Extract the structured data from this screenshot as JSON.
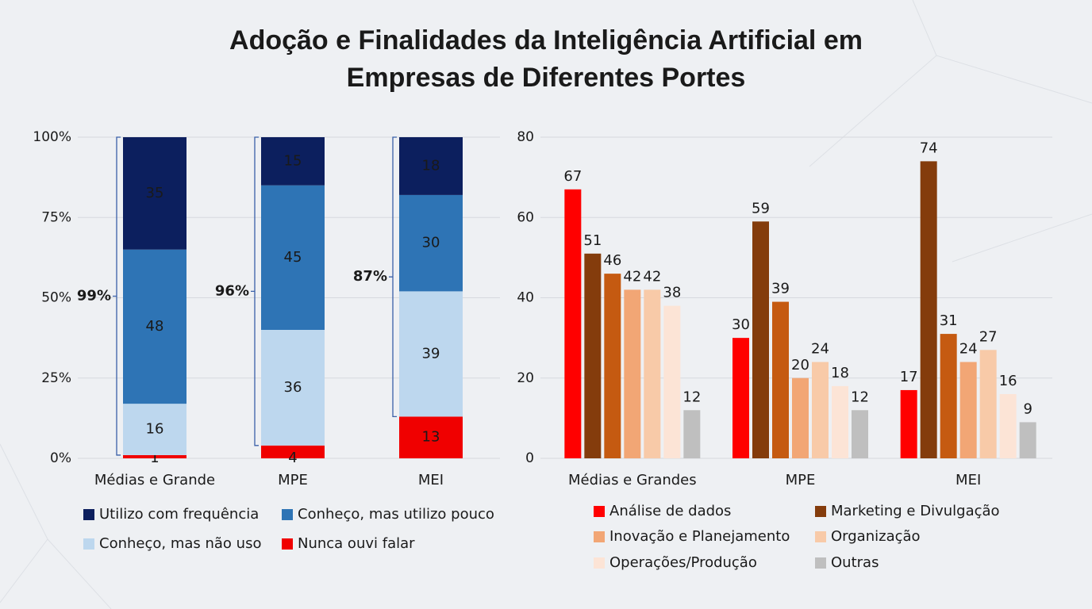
{
  "title": [
    "Adoção e Finalidades da Inteligência Artificial em",
    "Empresas de Diferentes Portes"
  ],
  "chart_data": [
    {
      "type": "stacked-bar",
      "categories": [
        "Médias e Grande",
        "MPE",
        "MEI"
      ],
      "series": [
        {
          "name": "Utilizo com frequência",
          "color": "#0c1f5e",
          "values": [
            35,
            15,
            18
          ]
        },
        {
          "name": "Conheço, mas utilizo pouco",
          "color": "#2e74b5",
          "values": [
            48,
            45,
            30
          ]
        },
        {
          "name": "Conheço, mas não uso",
          "color": "#bdd7ee",
          "values": [
            16,
            36,
            39
          ]
        },
        {
          "name": "Nunca ouvi falar",
          "color": "#f00000",
          "values": [
            1,
            4,
            13
          ]
        }
      ],
      "bracket_values": [
        99,
        96,
        87
      ],
      "bracket_labels": [
        "99%",
        "96%",
        "87%"
      ],
      "ylim": [
        0,
        100
      ],
      "yticks": [
        {
          "value": 0,
          "label": "0%"
        },
        {
          "value": 25,
          "label": "25%"
        },
        {
          "value": 50,
          "label": "50%"
        },
        {
          "value": 75,
          "label": "75%"
        },
        {
          "value": 100,
          "label": "100%"
        }
      ],
      "grid": true
    },
    {
      "type": "grouped-bar",
      "categories": [
        "Médias e Grandes",
        "MPE",
        "MEI"
      ],
      "series": [
        {
          "name": "Análise de dados",
          "color": "#ff0000",
          "values": [
            67,
            30,
            17
          ]
        },
        {
          "name": "Marketing e Divulgação",
          "color": "#843c0c",
          "values": [
            51,
            59,
            74
          ]
        },
        {
          "name": null,
          "color": "#c55a11",
          "values": [
            46,
            39,
            31
          ]
        },
        {
          "name": "Inovação e Planejamento",
          "color": "#f2a675",
          "values": [
            42,
            20,
            24
          ]
        },
        {
          "name": "Organização",
          "color": "#f8caa8",
          "values": [
            42,
            24,
            27
          ]
        },
        {
          "name": "Operações/Produção",
          "color": "#fce4d6",
          "values": [
            38,
            18,
            16
          ]
        },
        {
          "name": "Outras",
          "color": "#bfbfbf",
          "values": [
            12,
            12,
            9
          ]
        }
      ],
      "ylim": [
        0,
        80
      ],
      "yticks": [
        0,
        20,
        40,
        60,
        80
      ],
      "grid": true
    }
  ]
}
